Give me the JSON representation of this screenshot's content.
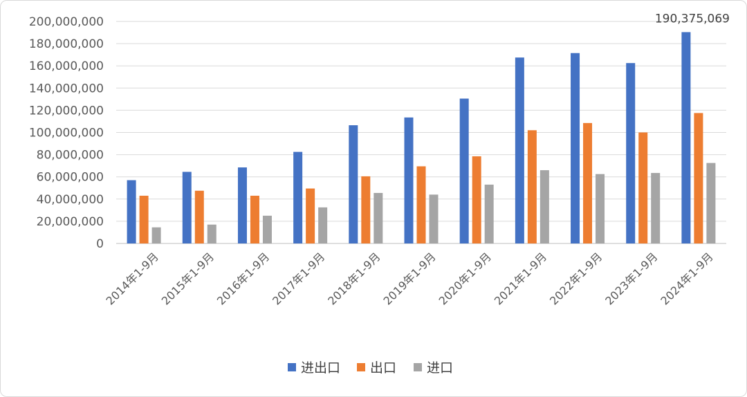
{
  "chart_data": {
    "type": "bar",
    "title": "",
    "xlabel": "",
    "ylabel": "",
    "categories": [
      "2014年1-9月",
      "2015年1-9月",
      "2016年1-9月",
      "2017年1-9月",
      "2018年1-9月",
      "2019年1-9月",
      "2020年1-9月",
      "2021年1-9月",
      "2022年1-9月",
      "2023年1-9月",
      "2024年1-9月"
    ],
    "series": [
      {
        "name": "进出口",
        "color": "#4472C4",
        "values": [
          57000000,
          64500000,
          68500000,
          82500000,
          106500000,
          113500000,
          130500000,
          167500000,
          171500000,
          162500000,
          190375069
        ]
      },
      {
        "name": "出口",
        "color": "#ED7D31",
        "values": [
          43000000,
          47500000,
          43000000,
          49500000,
          60500000,
          69500000,
          78500000,
          102000000,
          108500000,
          100000000,
          117500000
        ]
      },
      {
        "name": "进口",
        "color": "#A5A5A5",
        "values": [
          14500000,
          17000000,
          25000000,
          32500000,
          45500000,
          44000000,
          53000000,
          66000000,
          62500000,
          63500000,
          72500000
        ]
      }
    ],
    "ylim": [
      0,
      200000000
    ],
    "yticks": [
      0,
      20000000,
      40000000,
      60000000,
      80000000,
      100000000,
      120000000,
      140000000,
      160000000,
      180000000,
      200000000
    ],
    "ytick_labels": [
      "0",
      "20,000,000",
      "40,000,000",
      "60,000,000",
      "80,000,000",
      "100,000,000",
      "120,000,000",
      "140,000,000",
      "160,000,000",
      "180,000,000",
      "200,000,000"
    ],
    "grid": true,
    "legend_position": "bottom",
    "annotations": [
      {
        "series": 0,
        "category": 10,
        "text": "190,375,069"
      }
    ]
  }
}
